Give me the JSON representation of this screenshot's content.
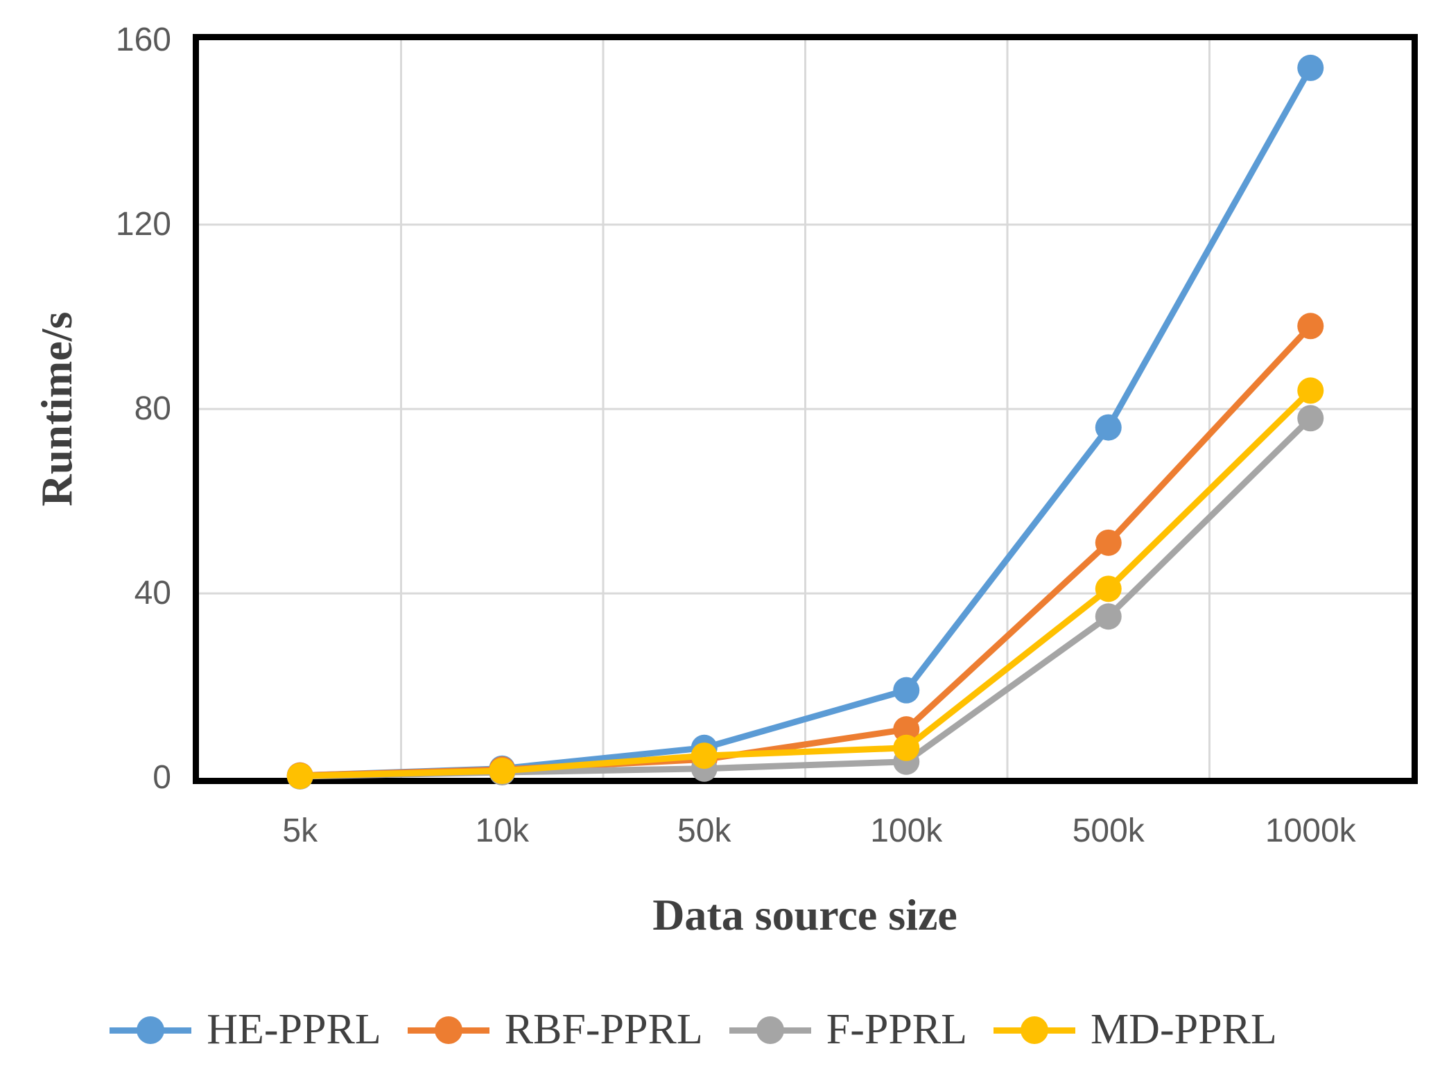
{
  "chart_data": {
    "type": "line",
    "title": "",
    "xlabel": "Data source size",
    "ylabel": "Runtime/s",
    "categories": [
      "5k",
      "10k",
      "50k",
      "100k",
      "500k",
      "1000k"
    ],
    "series": [
      {
        "name": "HE-PPRL",
        "color": "#5B9BD5",
        "values": [
          0.5,
          2.0,
          6.5,
          19.0,
          76.0,
          154.0
        ]
      },
      {
        "name": "RBF-PPRL",
        "color": "#ED7D31",
        "values": [
          0.5,
          1.8,
          4.0,
          10.5,
          51.0,
          98.0
        ]
      },
      {
        "name": "F-PPRL",
        "color": "#A5A5A5",
        "values": [
          0.3,
          1.2,
          2.0,
          3.5,
          35.0,
          78.0
        ]
      },
      {
        "name": "MD-PPRL",
        "color": "#FFC000",
        "values": [
          0.4,
          1.5,
          4.8,
          6.5,
          41.0,
          84.0
        ]
      }
    ],
    "ylim": [
      0,
      160
    ],
    "yticks": [
      0,
      40,
      80,
      120,
      160
    ],
    "grid": true,
    "legend_position": "bottom",
    "colors": {
      "grid": "#D9D9D9",
      "axis_border": "#000000",
      "tick_label": "#595959",
      "title_text": "#3F3F3F",
      "legend_text": "#404040"
    }
  }
}
